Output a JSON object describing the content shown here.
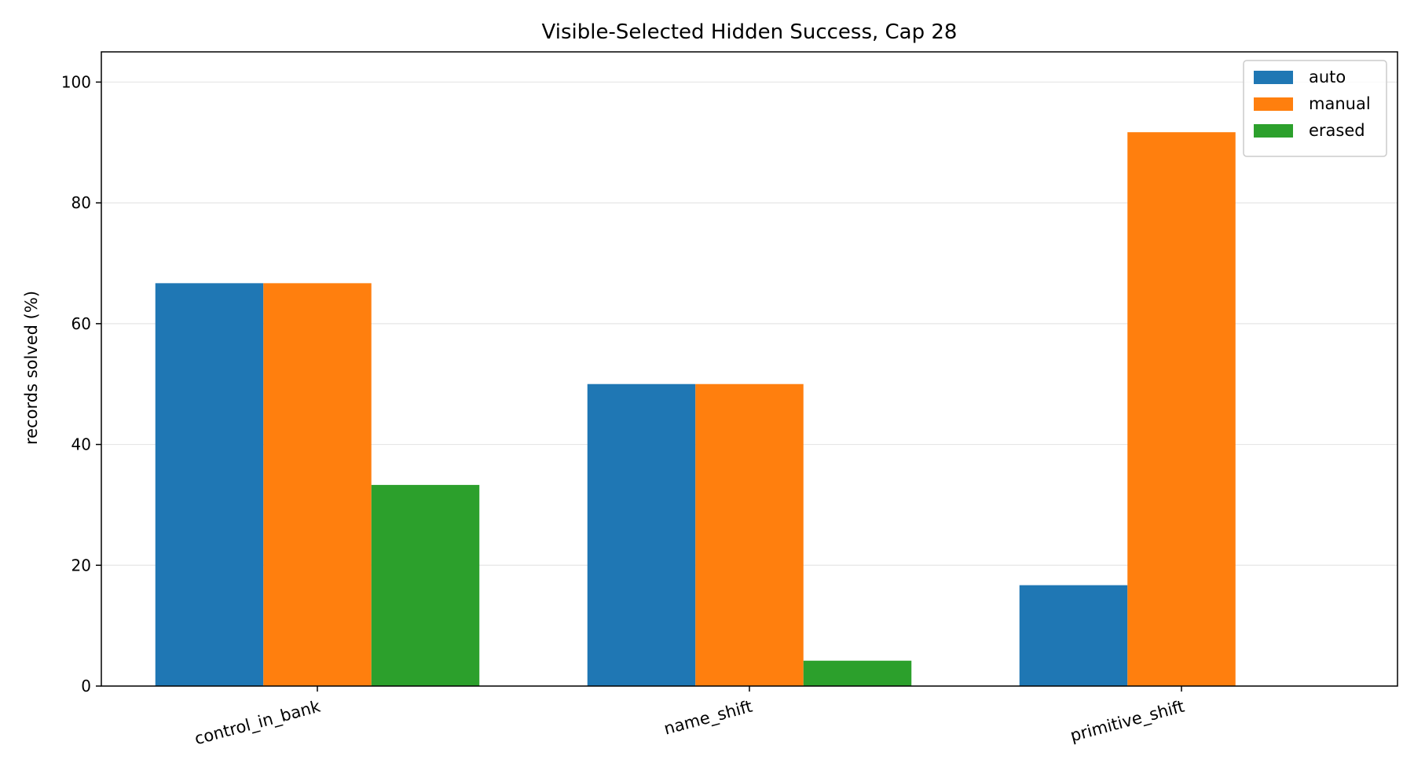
{
  "chart_data": {
    "type": "bar",
    "title": "Visible-Selected Hidden Success, Cap 28",
    "xlabel": "",
    "ylabel": "records solved (%)",
    "categories": [
      "control_in_bank",
      "name_shift",
      "primitive_shift"
    ],
    "series": [
      {
        "name": "auto",
        "color": "#1f77b4",
        "values": [
          66.7,
          50.0,
          16.7
        ]
      },
      {
        "name": "manual",
        "color": "#ff7f0e",
        "values": [
          66.7,
          50.0,
          91.7
        ]
      },
      {
        "name": "erased",
        "color": "#2ca02c",
        "values": [
          33.3,
          4.2,
          0
        ]
      }
    ],
    "ylim": [
      0,
      105
    ],
    "yticks": [
      0,
      20,
      40,
      60,
      80,
      100
    ],
    "grid": "y",
    "legend": "top-right"
  }
}
